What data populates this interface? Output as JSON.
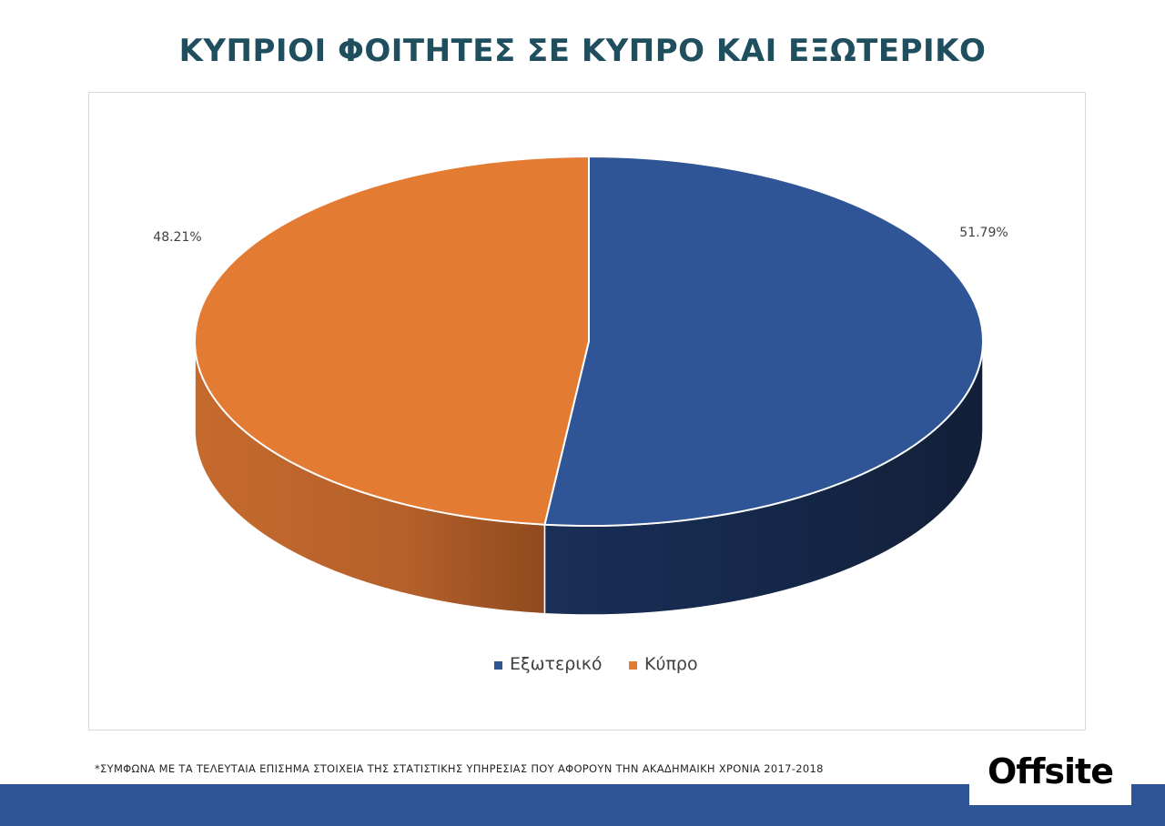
{
  "page": {
    "title": "ΚΥΠΡΙΟΙ ΦΟΙΤΗΤΕΣ ΣΕ ΚΥΠΡΟ ΚΑΙ ΕΞΩΤΕΡΙΚΟ",
    "footnote": "*ΣΥΜΦΩΝΑ ΜΕ ΤΑ ΤΕΛΕΥΤΑΙΑ ΕΠΙΣΗΜΑ ΣΤΟΙΧΕΙΑ ΤΗΣ ΣΤΑΤΙΣΤΙΚΗΣ ΥΠΗΡΕΣΙΑΣ ΠΟΥ ΑΦΟΡΟΥΝ ΤΗΝ ΑΚΑΔΗΜΑΙΚΗ ΧΡΟΝΙΑ 2017-2018",
    "logo": "Offsite",
    "band_color": "#2e5597"
  },
  "chart_data": {
    "type": "pie",
    "style": "3d",
    "categories": [
      "Εξωτερικό",
      "Κύπρο"
    ],
    "values": [
      51.79,
      48.21
    ],
    "labels": [
      "51.79%",
      "48.21%"
    ],
    "colors": [
      "#2f5597",
      "#e47b32"
    ],
    "legend": {
      "position": "bottom",
      "entries": [
        "Εξωτερικό",
        "Κύπρο"
      ]
    }
  }
}
